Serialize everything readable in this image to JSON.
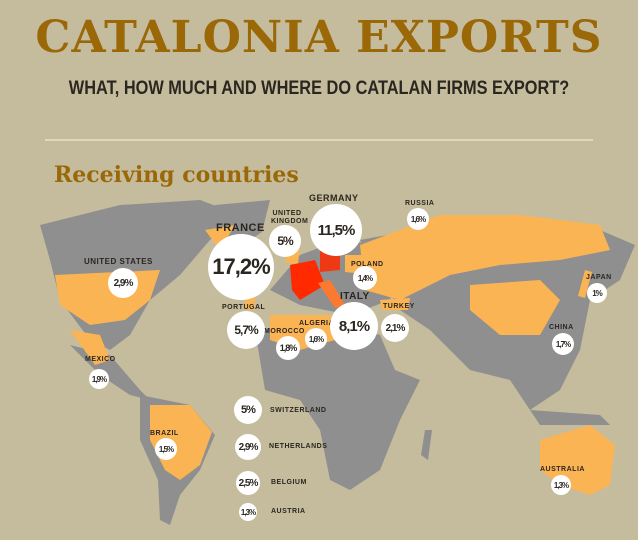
{
  "title": "CATALONIA EXPORTS",
  "subtitle": "WHAT, HOW MUCH AND WHERE DO CATALAN FIRMS EXPORT?",
  "section": "Receiving countries",
  "colors": {
    "background": "#c5bc9d",
    "title": "#9b6808",
    "land": "#8f8f8f",
    "export_country": "#fbb454",
    "catalonia_spain": "#ff2a00",
    "bubble": "#ffffff"
  },
  "countries": [
    {
      "name": "FRANCE",
      "share": "17,2%"
    },
    {
      "name": "GERMANY",
      "share": "11,5%"
    },
    {
      "name": "ITALY",
      "share": "8,1%"
    },
    {
      "name": "PORTUGAL",
      "share": "5,7%"
    },
    {
      "name": "UNITED KINGDOM",
      "share": "5%"
    },
    {
      "name": "SWITZERLAND",
      "share": "5%"
    },
    {
      "name": "UNITED STATES",
      "share": "2,9%"
    },
    {
      "name": "NETHERLANDS",
      "share": "2,9%"
    },
    {
      "name": "BELGIUM",
      "share": "2,5%"
    },
    {
      "name": "TURKEY",
      "share": "2,1%"
    },
    {
      "name": "MEXICO",
      "share": "1,9%"
    },
    {
      "name": "MOROCCO",
      "share": "1,8%"
    },
    {
      "name": "RUSSIA",
      "share": "1,6%"
    },
    {
      "name": "ALGERIA",
      "share": "1,6%"
    },
    {
      "name": "BRAZIL",
      "share": "1,5%"
    },
    {
      "name": "POLAND",
      "share": "1,4%"
    },
    {
      "name": "AUSTRIA",
      "share": "1,3%"
    },
    {
      "name": "AUSTRALIA",
      "share": "1,3%"
    },
    {
      "name": "CHINA",
      "share": "1,7%"
    },
    {
      "name": "JAPAN",
      "share": "1%"
    }
  ]
}
